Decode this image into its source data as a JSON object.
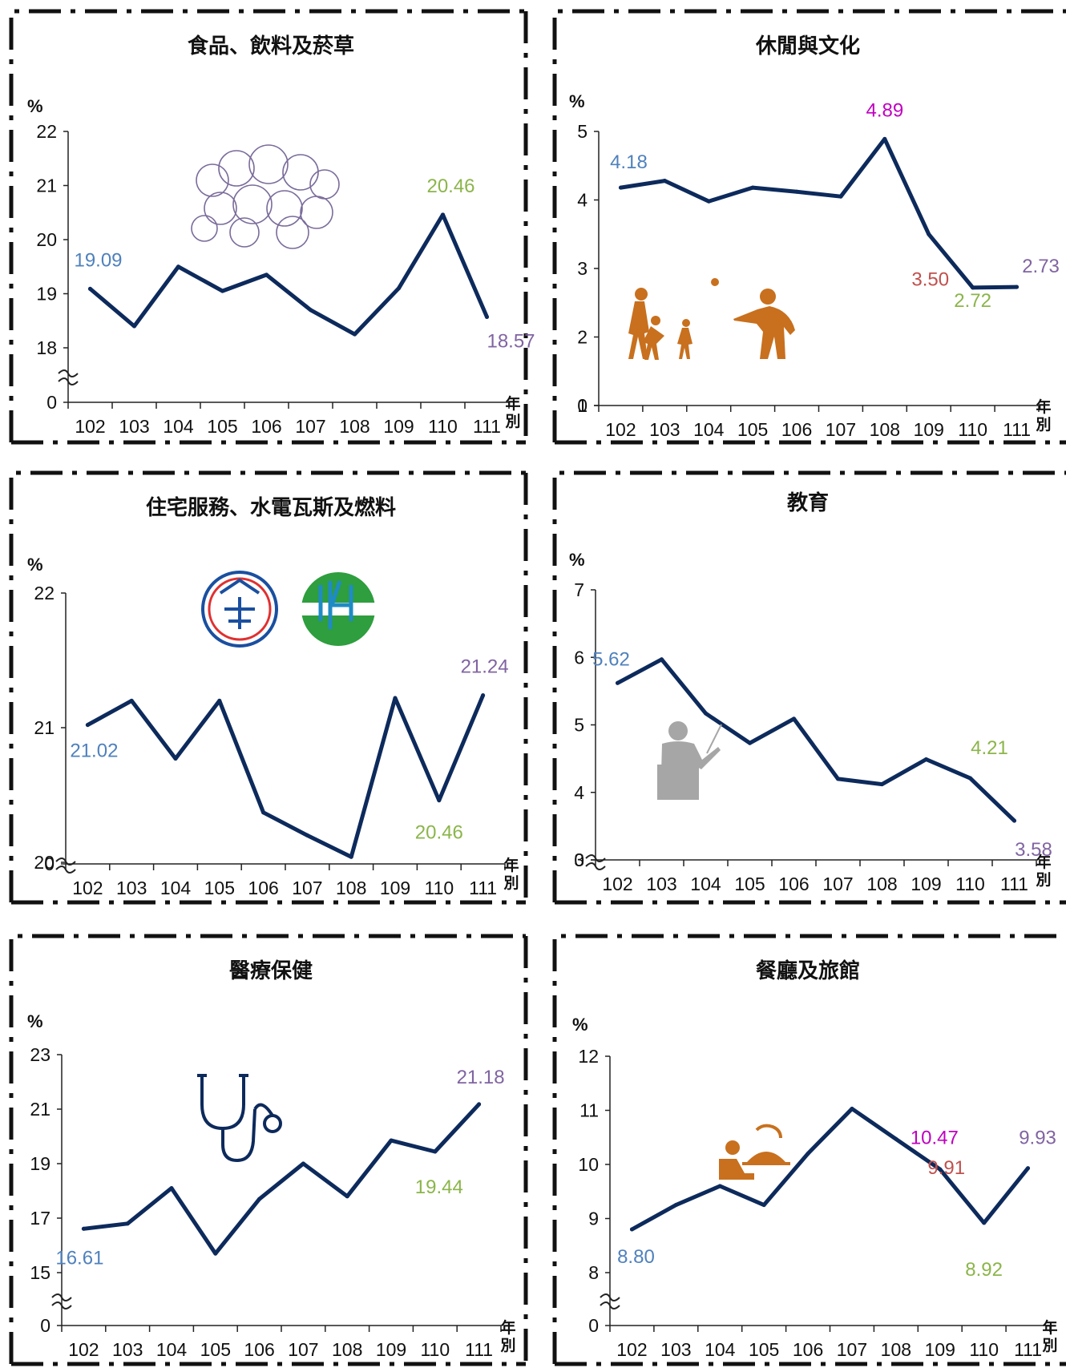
{
  "x_axis_label": "年別",
  "unit": "%",
  "colors": {
    "line": "#0d2a5c",
    "blue": "#4f81bd",
    "green": "#8bb54a",
    "purple": "#8064a2",
    "red": "#c0504d",
    "magenta": "#c000c0",
    "orange": "#c8701e",
    "gray": "#a6a6a6"
  },
  "chart_data": [
    {
      "type": "line",
      "title": "食品、飲料及菸草",
      "categories": [
        "102",
        "103",
        "104",
        "105",
        "106",
        "107",
        "108",
        "109",
        "110",
        "111"
      ],
      "values": [
        19.09,
        18.4,
        19.5,
        19.05,
        19.35,
        18.7,
        18.25,
        19.1,
        20.46,
        18.57
      ],
      "ylim": [
        17,
        22
      ],
      "yticks": [
        "0",
        "18",
        "19",
        "20",
        "21",
        "22"
      ],
      "axis_break": true,
      "icon": "food-icon",
      "labels": [
        {
          "i": 0,
          "text": "19.09",
          "color": "blue"
        },
        {
          "i": 8,
          "text": "20.46",
          "color": "green"
        },
        {
          "i": 9,
          "text": "18.57",
          "color": "purple"
        }
      ]
    },
    {
      "type": "line",
      "title": "休閒與文化",
      "categories": [
        "102",
        "103",
        "104",
        "105",
        "106",
        "107",
        "108",
        "109",
        "110",
        "111"
      ],
      "values": [
        4.18,
        4.28,
        3.98,
        4.18,
        4.12,
        4.05,
        4.89,
        3.5,
        2.72,
        2.73
      ],
      "ylim": [
        0,
        5
      ],
      "yticks": [
        "0",
        "1",
        "2",
        "3",
        "4",
        "5"
      ],
      "axis_break": false,
      "icon": "family-playing-icon",
      "labels": [
        {
          "i": 0,
          "text": "4.18",
          "color": "blue"
        },
        {
          "i": 6,
          "text": "4.89",
          "color": "magenta"
        },
        {
          "i": 7,
          "text": "3.50",
          "color": "red"
        },
        {
          "i": 8,
          "text": "2.72",
          "color": "green"
        },
        {
          "i": 9,
          "text": "2.73",
          "color": "purple"
        }
      ]
    },
    {
      "type": "line",
      "title": "住宅服務、水電瓦斯及燃料",
      "categories": [
        "102",
        "103",
        "104",
        "105",
        "106",
        "107",
        "108",
        "109",
        "110",
        "111"
      ],
      "values": [
        21.02,
        21.2,
        20.77,
        21.2,
        20.37,
        20.2,
        20.04,
        21.22,
        20.46,
        21.24
      ],
      "ylim": [
        19,
        22
      ],
      "yticks": [
        "0",
        "20",
        "21",
        "22"
      ],
      "axis_break": true,
      "icon": "utility-logos-icon",
      "labels": [
        {
          "i": 0,
          "text": "21.02",
          "color": "blue"
        },
        {
          "i": 8,
          "text": "20.46",
          "color": "green"
        },
        {
          "i": 9,
          "text": "21.24",
          "color": "purple"
        }
      ]
    },
    {
      "type": "line",
      "title": "教育",
      "categories": [
        "102",
        "103",
        "104",
        "105",
        "106",
        "107",
        "108",
        "109",
        "110",
        "111"
      ],
      "values": [
        5.62,
        5.97,
        5.17,
        4.73,
        5.09,
        4.2,
        4.12,
        4.49,
        4.21,
        3.58
      ],
      "ylim": [
        2,
        7
      ],
      "yticks": [
        "0",
        "3",
        "4",
        "5",
        "6",
        "7"
      ],
      "axis_break": true,
      "icon": "teacher-icon",
      "labels": [
        {
          "i": 0,
          "text": "5.62",
          "color": "blue"
        },
        {
          "i": 8,
          "text": "4.21",
          "color": "green"
        },
        {
          "i": 9,
          "text": "3.58",
          "color": "purple"
        }
      ]
    },
    {
      "type": "line",
      "title": "醫療保健",
      "categories": [
        "102",
        "103",
        "104",
        "105",
        "106",
        "107",
        "108",
        "109",
        "110",
        "111"
      ],
      "values": [
        16.61,
        16.8,
        18.1,
        15.7,
        17.7,
        19.0,
        17.8,
        19.85,
        19.44,
        21.18
      ],
      "ylim": [
        13,
        23
      ],
      "yticks": [
        "0",
        "15",
        "17",
        "19",
        "21",
        "23"
      ],
      "axis_break": true,
      "icon": "stethoscope-icon",
      "labels": [
        {
          "i": 0,
          "text": "16.61",
          "color": "blue"
        },
        {
          "i": 8,
          "text": "19.44",
          "color": "green"
        },
        {
          "i": 9,
          "text": "21.18",
          "color": "purple"
        }
      ]
    },
    {
      "type": "line",
      "title": "餐廳及旅館",
      "categories": [
        "102",
        "103",
        "104",
        "105",
        "106",
        "107",
        "108",
        "109",
        "110",
        "111"
      ],
      "values": [
        8.8,
        9.25,
        9.6,
        9.25,
        10.2,
        11.03,
        10.47,
        9.91,
        8.92,
        9.93
      ],
      "ylim": [
        7,
        12
      ],
      "yticks": [
        "0",
        "8",
        "9",
        "10",
        "11",
        "12"
      ],
      "axis_break": true,
      "icon": "food-serving-icon",
      "labels": [
        {
          "i": 0,
          "text": "8.80",
          "color": "blue"
        },
        {
          "i": 6,
          "text": "10.47",
          "color": "magenta"
        },
        {
          "i": 7,
          "text": "9.91",
          "color": "red"
        },
        {
          "i": 8,
          "text": "8.92",
          "color": "green"
        },
        {
          "i": 9,
          "text": "9.93",
          "color": "purple"
        }
      ]
    }
  ]
}
